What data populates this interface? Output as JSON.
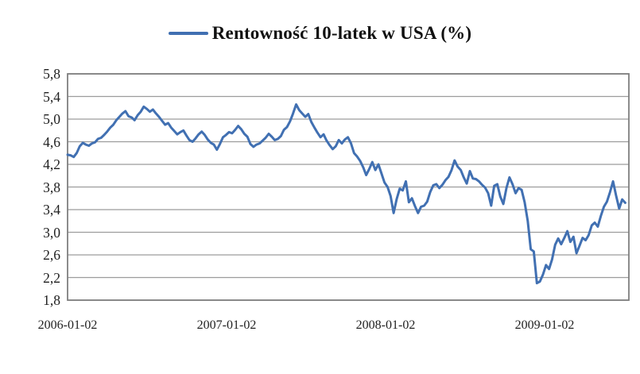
{
  "legend": {
    "label": "Rentowność 10-latek w USA (%)",
    "marker": "blue-line-marker"
  },
  "colors": {
    "series": "#4170b2",
    "gridline": "#9c9c9c",
    "frame": "#7f7f7f",
    "text": "#1f1f1f",
    "background": "#ffffff"
  },
  "chart_data": {
    "type": "line",
    "title": "Rentowność 10-latek w USA (%)",
    "series_name": "Rentowność 10-latek w USA (%)",
    "xlabel": "",
    "ylabel": "",
    "grid": "horizontal only",
    "legend_position": "top center",
    "ylim": [
      1.8,
      5.8
    ],
    "y_tick_step": 0.4,
    "y_tick_labels": [
      "5,8",
      "5,4",
      "5,0",
      "4,6",
      "4,2",
      "3,8",
      "3,4",
      "3,0",
      "2,6",
      "2,2",
      "1,8"
    ],
    "xlim": [
      2006.0,
      2009.53
    ],
    "x_tick_values": [
      2006.0,
      2007.0,
      2008.0,
      2009.0
    ],
    "x_tick_labels": [
      "2006-01-02",
      "2007-01-02",
      "2008-01-02",
      "2009-01-02"
    ],
    "x_sampling": "weekly",
    "x_start": 2006.0,
    "x_step_years": 0.019165,
    "values": [
      4.37,
      4.36,
      4.33,
      4.4,
      4.52,
      4.58,
      4.55,
      4.53,
      4.57,
      4.59,
      4.65,
      4.67,
      4.72,
      4.78,
      4.85,
      4.9,
      4.98,
      5.04,
      5.1,
      5.14,
      5.05,
      5.03,
      4.98,
      5.07,
      5.13,
      5.22,
      5.18,
      5.13,
      5.17,
      5.1,
      5.04,
      4.97,
      4.9,
      4.93,
      4.85,
      4.79,
      4.73,
      4.77,
      4.8,
      4.71,
      4.63,
      4.6,
      4.66,
      4.73,
      4.78,
      4.72,
      4.64,
      4.58,
      4.55,
      4.46,
      4.56,
      4.68,
      4.72,
      4.77,
      4.75,
      4.81,
      4.88,
      4.82,
      4.74,
      4.69,
      4.56,
      4.51,
      4.55,
      4.57,
      4.62,
      4.67,
      4.74,
      4.69,
      4.63,
      4.65,
      4.7,
      4.81,
      4.86,
      4.96,
      5.1,
      5.26,
      5.16,
      5.1,
      5.04,
      5.09,
      4.95,
      4.85,
      4.76,
      4.68,
      4.73,
      4.62,
      4.54,
      4.47,
      4.52,
      4.63,
      4.57,
      4.64,
      4.68,
      4.57,
      4.4,
      4.34,
      4.26,
      4.15,
      4.01,
      4.12,
      4.24,
      4.1,
      4.2,
      4.04,
      3.88,
      3.8,
      3.64,
      3.34,
      3.59,
      3.77,
      3.74,
      3.9,
      3.53,
      3.6,
      3.46,
      3.34,
      3.45,
      3.47,
      3.54,
      3.71,
      3.83,
      3.85,
      3.78,
      3.84,
      3.92,
      3.98,
      4.1,
      4.27,
      4.16,
      4.1,
      3.97,
      3.86,
      4.08,
      3.95,
      3.94,
      3.9,
      3.84,
      3.79,
      3.69,
      3.47,
      3.82,
      3.85,
      3.63,
      3.5,
      3.78,
      3.97,
      3.85,
      3.69,
      3.78,
      3.75,
      3.53,
      3.2,
      2.7,
      2.66,
      2.1,
      2.13,
      2.25,
      2.42,
      2.35,
      2.52,
      2.78,
      2.89,
      2.79,
      2.9,
      3.02,
      2.83,
      2.92,
      2.63,
      2.76,
      2.9,
      2.86,
      2.95,
      3.12,
      3.17,
      3.1,
      3.29,
      3.45,
      3.54,
      3.71,
      3.9,
      3.65,
      3.42,
      3.58,
      3.52
    ]
  }
}
